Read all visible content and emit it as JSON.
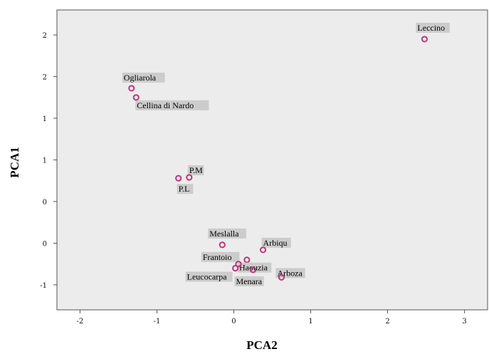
{
  "chart_data": {
    "type": "scatter",
    "title": "",
    "xlabel": "PCA2",
    "ylabel": "PCA1",
    "x_ticks": [
      "-2",
      "-1",
      "0",
      "1",
      "2",
      "3"
    ],
    "y_ticks": [
      "-1",
      "0",
      "0",
      "1",
      "1",
      "2",
      "2"
    ],
    "xlim": [
      -2.3,
      3.3
    ],
    "ylim": [
      -1.3,
      2.3
    ],
    "grid": false,
    "legend": "none",
    "colors": {
      "plot_bg": "#ececec",
      "marker": "#c0357a",
      "label_bg": "#cccccc"
    },
    "points": [
      {
        "label": "Leccino",
        "x": 2.48,
        "y": 1.95
      },
      {
        "label": "Ogliarola",
        "x": -1.33,
        "y": 1.36
      },
      {
        "label": "Cellina di Nardo",
        "x": -1.27,
        "y": 1.25
      },
      {
        "label": "P.M",
        "x": -0.58,
        "y": 0.29
      },
      {
        "label": "P.L",
        "x": -0.72,
        "y": 0.28
      },
      {
        "label": "Meslalla",
        "x": -0.15,
        "y": -0.52
      },
      {
        "label": "Arbiqu",
        "x": 0.38,
        "y": -0.58
      },
      {
        "label": "Frantoio",
        "x": 0.17,
        "y": -0.7
      },
      {
        "label": "Haouzia",
        "x": 0.06,
        "y": -0.75
      },
      {
        "label": "Leucocarpa",
        "x": 0.02,
        "y": -0.8
      },
      {
        "label": "Menara",
        "x": 0.25,
        "y": -0.82
      },
      {
        "label": "Arboza",
        "x": 0.62,
        "y": -0.91
      }
    ]
  }
}
